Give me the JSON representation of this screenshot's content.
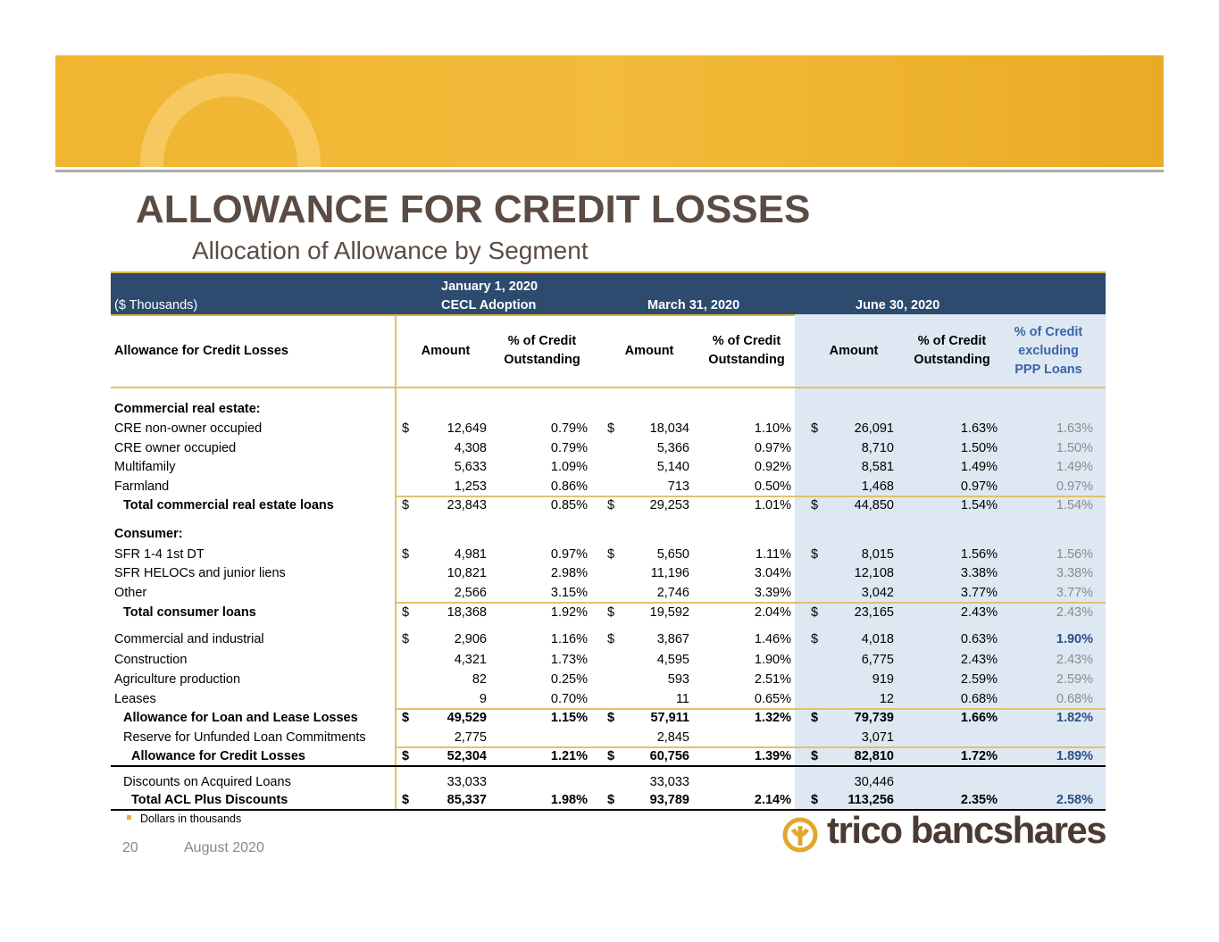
{
  "header": {
    "title": "ALLOWANCE FOR CREDIT LOSSES",
    "subtitle": "Allocation of Allowance by Segment"
  },
  "table": {
    "band": {
      "units": "($ Thousands)",
      "periods": [
        [
          "January 1, 2020",
          "CECL Adoption"
        ],
        [
          "March 31, 2020"
        ],
        [
          "June 30, 2020"
        ]
      ]
    },
    "columns": [
      [
        "Allowance for Credit Losses"
      ],
      [
        "Amount"
      ],
      [
        "% of Credit",
        "Outstanding"
      ],
      [
        "Amount"
      ],
      [
        "% of Credit",
        "Outstanding"
      ],
      [
        "Amount"
      ],
      [
        "% of Credit",
        "Outstanding"
      ],
      [
        "% of Credit",
        "excluding",
        "PPP Loans"
      ]
    ],
    "rows": [
      {
        "label": "Commercial real estate:"
      },
      {
        "label": "CRE non-owner occupied",
        "cells": [
          "$",
          "12,649",
          "0.79%",
          "$",
          "18,034",
          "1.10%",
          "$",
          "26,091",
          "1.63%",
          "1.63%"
        ]
      },
      {
        "label": "CRE owner occupied",
        "cells": [
          null,
          "4,308",
          "0.79%",
          null,
          "5,366",
          "0.97%",
          null,
          "8,710",
          "1.50%",
          "1.50%"
        ]
      },
      {
        "label": "Multifamily",
        "cells": [
          null,
          "5,633",
          "1.09%",
          null,
          "5,140",
          "0.92%",
          null,
          "8,581",
          "1.49%",
          "1.49%"
        ]
      },
      {
        "label": "Farmland",
        "cells": [
          null,
          "1,253",
          "0.86%",
          null,
          "713",
          "0.50%",
          null,
          "1,468",
          "0.97%",
          "0.97%"
        ]
      },
      {
        "label": "Total commercial real estate loans",
        "cells": [
          "$",
          "23,843",
          "0.85%",
          "$",
          "29,253",
          "1.01%",
          "$",
          "44,850",
          "1.54%",
          "1.54%"
        ]
      },
      {
        "label": "Consumer:"
      },
      {
        "label": "SFR 1-4 1st DT",
        "cells": [
          "$",
          "4,981",
          "0.97%",
          "$",
          "5,650",
          "1.11%",
          "$",
          "8,015",
          "1.56%",
          "1.56%"
        ]
      },
      {
        "label": "SFR HELOCs and junior liens",
        "cells": [
          null,
          "10,821",
          "2.98%",
          null,
          "11,196",
          "3.04%",
          null,
          "12,108",
          "3.38%",
          "3.38%"
        ]
      },
      {
        "label": "Other",
        "cells": [
          null,
          "2,566",
          "3.15%",
          null,
          "2,746",
          "3.39%",
          null,
          "3,042",
          "3.77%",
          "3.77%"
        ]
      },
      {
        "label": "Total consumer loans",
        "cells": [
          "$",
          "18,368",
          "1.92%",
          "$",
          "19,592",
          "2.04%",
          "$",
          "23,165",
          "2.43%",
          "2.43%"
        ]
      },
      {
        "label": "Commercial and industrial",
        "cells": [
          "$",
          "2,906",
          "1.16%",
          "$",
          "3,867",
          "1.46%",
          "$",
          "4,018",
          "0.63%",
          "1.90%"
        ]
      },
      {
        "label": "Construction",
        "cells": [
          null,
          "4,321",
          "1.73%",
          null,
          "4,595",
          "1.90%",
          null,
          "6,775",
          "2.43%",
          "2.43%"
        ]
      },
      {
        "label": "Agriculture production",
        "cells": [
          null,
          "82",
          "0.25%",
          null,
          "593",
          "2.51%",
          null,
          "919",
          "2.59%",
          "2.59%"
        ]
      },
      {
        "label": "Leases",
        "cells": [
          null,
          "9",
          "0.70%",
          null,
          "11",
          "0.65%",
          null,
          "12",
          "0.68%",
          "0.68%"
        ]
      },
      {
        "label": "Allowance for Loan and Lease Losses",
        "cells": [
          "$",
          "49,529",
          "1.15%",
          "$",
          "57,911",
          "1.32%",
          "$",
          "79,739",
          "1.66%",
          "1.82%"
        ]
      },
      {
        "label": "Reserve for Unfunded Loan Commitments",
        "cells": [
          null,
          "2,775",
          null,
          null,
          "2,845",
          null,
          null,
          "3,071",
          null,
          null
        ]
      },
      {
        "label": "Allowance for Credit Losses",
        "cells": [
          "$",
          "52,304",
          "1.21%",
          "$",
          "60,756",
          "1.39%",
          "$",
          "82,810",
          "1.72%",
          "1.89%"
        ]
      },
      {
        "label": "Discounts on Acquired Loans",
        "cells": [
          null,
          "33,033",
          null,
          null,
          "33,033",
          null,
          null,
          "30,446",
          null,
          null
        ]
      },
      {
        "label": "Total ACL Plus Discounts",
        "cells": [
          "$",
          "85,337",
          "1.98%",
          "$",
          "93,789",
          "2.14%",
          "$",
          "113,256",
          "2.35%",
          "2.58%"
        ]
      }
    ]
  },
  "footer": {
    "note": "Dollars in thousands",
    "page": "20",
    "date": "August 2020",
    "logo": "trico bancshares"
  }
}
